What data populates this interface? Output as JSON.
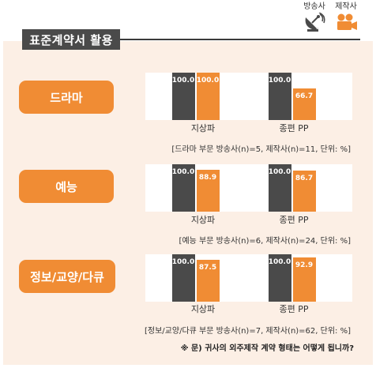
{
  "header": {
    "title": "표준계약서 활용",
    "legend": [
      {
        "label": "방송사",
        "icon": "satellite-dish-icon",
        "color": "#4a4a4a"
      },
      {
        "label": "제작사",
        "icon": "video-camera-icon",
        "color": "#f08c34"
      }
    ]
  },
  "colors": {
    "broadcaster": "#4a4a4a",
    "producer": "#f08c34",
    "background": "#fcefe5"
  },
  "chart_data": [
    {
      "type": "bar",
      "title": "드라마",
      "categories": [
        "지상파",
        "종편 PP"
      ],
      "series": [
        {
          "name": "방송사",
          "values": [
            100.0,
            100.0
          ]
        },
        {
          "name": "제작사",
          "values": [
            100.0,
            66.7
          ]
        }
      ],
      "ylim": [
        0,
        100
      ],
      "note": "[드라마 부문 방송사(n)=5, 제작사(n)=11, 단위: %]",
      "value_labels": [
        [
          "100.0",
          "100.0"
        ],
        [
          "100.0",
          "66.7"
        ]
      ]
    },
    {
      "type": "bar",
      "title": "예능",
      "categories": [
        "지상파",
        "종편 PP"
      ],
      "series": [
        {
          "name": "방송사",
          "values": [
            100.0,
            100.0
          ]
        },
        {
          "name": "제작사",
          "values": [
            88.9,
            86.7
          ]
        }
      ],
      "ylim": [
        0,
        100
      ],
      "note": "[예능 부문 방송사(n)=6, 제작사(n)=24, 단위: %]",
      "value_labels": [
        [
          "100.0",
          "100.0"
        ],
        [
          "88.9",
          "86.7"
        ]
      ]
    },
    {
      "type": "bar",
      "title": "정보/교양/다큐",
      "categories": [
        "지상파",
        "종편 PP"
      ],
      "series": [
        {
          "name": "방송사",
          "values": [
            100.0,
            100.0
          ]
        },
        {
          "name": "제작사",
          "values": [
            87.5,
            92.9
          ]
        }
      ],
      "ylim": [
        0,
        100
      ],
      "note": "[정보/교양/다큐 부문 방송사(n)=7, 제작사(n)=62, 단위: %]",
      "value_labels": [
        [
          "100.0",
          "100.0"
        ],
        [
          "87.5",
          "92.9"
        ]
      ]
    }
  ],
  "footnote": "※ 문) 귀사의 외주제작 계약 형태는 어떻게 됩니까?"
}
